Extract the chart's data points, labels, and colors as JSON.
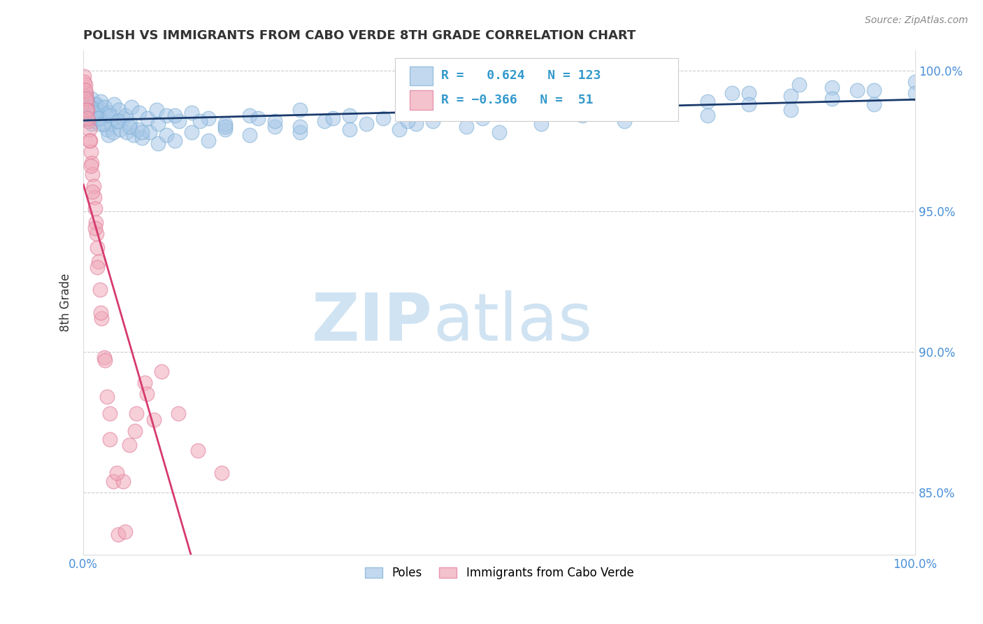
{
  "title": "POLISH VS IMMIGRANTS FROM CABO VERDE 8TH GRADE CORRELATION CHART",
  "source_text": "Source: ZipAtlas.com",
  "ylabel": "8th Grade",
  "watermark_zip": "ZIP",
  "watermark_atlas": "atlas",
  "blue_label": "Poles",
  "pink_label": "Immigrants from Cabo Verde",
  "blue_r": 0.624,
  "blue_n": 123,
  "pink_r": -0.366,
  "pink_n": 51,
  "blue_color": "#a8c8e8",
  "blue_edge_color": "#7aaed4",
  "pink_color": "#f0a8b8",
  "pink_edge_color": "#e07898",
  "blue_line_color": "#1a3a6b",
  "pink_line_color": "#d63a6e",
  "xmin": 0.0,
  "xmax": 1.0,
  "ymin": 0.828,
  "ymax": 1.007,
  "yticks": [
    0.85,
    0.9,
    0.95,
    1.0
  ],
  "ytick_labels": [
    "85.0%",
    "90.0%",
    "95.0%",
    "100.0%"
  ],
  "legend_r1": "R =  0.624   N = 123",
  "legend_r2": "R = −0.366   N =  51",
  "blue_seed_x": [
    0.002,
    0.003,
    0.004,
    0.005,
    0.006,
    0.007,
    0.008,
    0.009,
    0.01,
    0.011,
    0.012,
    0.013,
    0.014,
    0.015,
    0.016,
    0.017,
    0.018,
    0.019,
    0.02,
    0.022,
    0.025,
    0.028,
    0.03,
    0.033,
    0.036,
    0.04,
    0.044,
    0.048,
    0.052,
    0.056,
    0.06,
    0.065,
    0.07,
    0.08,
    0.09,
    0.1,
    0.11,
    0.13,
    0.15,
    0.17,
    0.2,
    0.23,
    0.26,
    0.29,
    0.32,
    0.36,
    0.4,
    0.44,
    0.48,
    0.52,
    0.56,
    0.6,
    0.65,
    0.7,
    0.75,
    0.8,
    0.85,
    0.9,
    0.95,
    1.0,
    0.003,
    0.005,
    0.007,
    0.01,
    0.013,
    0.017,
    0.021,
    0.026,
    0.031,
    0.037,
    0.043,
    0.05,
    0.058,
    0.067,
    0.077,
    0.088,
    0.1,
    0.115,
    0.13,
    0.15,
    0.17,
    0.2,
    0.23,
    0.26,
    0.3,
    0.34,
    0.38,
    0.42,
    0.46,
    0.5,
    0.55,
    0.6,
    0.65,
    0.7,
    0.75,
    0.8,
    0.85,
    0.9,
    0.95,
    1.0,
    0.004,
    0.008,
    0.012,
    0.018,
    0.024,
    0.032,
    0.042,
    0.055,
    0.07,
    0.09,
    0.11,
    0.14,
    0.17,
    0.21,
    0.26,
    0.32,
    0.39,
    0.46,
    0.54,
    0.62,
    0.7,
    0.78,
    0.86,
    0.93
  ],
  "blue_seed_y": [
    0.99,
    0.988,
    0.986,
    0.984,
    0.982,
    0.985,
    0.983,
    0.987,
    0.981,
    0.986,
    0.984,
    0.982,
    0.986,
    0.984,
    0.988,
    0.983,
    0.985,
    0.981,
    0.987,
    0.983,
    0.985,
    0.979,
    0.977,
    0.981,
    0.978,
    0.982,
    0.979,
    0.983,
    0.978,
    0.981,
    0.977,
    0.979,
    0.976,
    0.978,
    0.974,
    0.977,
    0.975,
    0.978,
    0.975,
    0.979,
    0.977,
    0.98,
    0.978,
    0.982,
    0.979,
    0.983,
    0.981,
    0.985,
    0.983,
    0.987,
    0.985,
    0.988,
    0.987,
    0.99,
    0.989,
    0.992,
    0.991,
    0.994,
    0.993,
    0.996,
    0.991,
    0.989,
    0.987,
    0.99,
    0.988,
    0.986,
    0.989,
    0.987,
    0.985,
    0.988,
    0.986,
    0.984,
    0.987,
    0.985,
    0.983,
    0.986,
    0.984,
    0.982,
    0.985,
    0.983,
    0.981,
    0.984,
    0.982,
    0.98,
    0.983,
    0.981,
    0.979,
    0.982,
    0.98,
    0.978,
    0.981,
    0.984,
    0.982,
    0.986,
    0.984,
    0.988,
    0.986,
    0.99,
    0.988,
    0.992,
    0.989,
    0.987,
    0.985,
    0.983,
    0.981,
    0.984,
    0.982,
    0.98,
    0.978,
    0.981,
    0.984,
    0.982,
    0.98,
    0.983,
    0.986,
    0.984,
    0.982,
    0.985,
    0.988,
    0.991,
    0.994,
    0.992,
    0.995,
    0.993
  ],
  "pink_seed_x": [
    0.001,
    0.002,
    0.003,
    0.004,
    0.005,
    0.006,
    0.007,
    0.008,
    0.009,
    0.01,
    0.011,
    0.012,
    0.013,
    0.014,
    0.015,
    0.016,
    0.017,
    0.018,
    0.02,
    0.022,
    0.025,
    0.028,
    0.032,
    0.036,
    0.042,
    0.048,
    0.055,
    0.064,
    0.074,
    0.085,
    0.001,
    0.002,
    0.003,
    0.004,
    0.005,
    0.007,
    0.009,
    0.011,
    0.014,
    0.017,
    0.021,
    0.026,
    0.032,
    0.04,
    0.05,
    0.062,
    0.076,
    0.094,
    0.114,
    0.138,
    0.166
  ],
  "pink_seed_y": [
    0.998,
    0.995,
    0.992,
    0.989,
    0.986,
    0.982,
    0.979,
    0.975,
    0.971,
    0.967,
    0.963,
    0.959,
    0.955,
    0.951,
    0.946,
    0.942,
    0.937,
    0.932,
    0.922,
    0.912,
    0.898,
    0.884,
    0.869,
    0.854,
    0.835,
    0.854,
    0.867,
    0.878,
    0.889,
    0.876,
    0.996,
    0.993,
    0.99,
    0.986,
    0.983,
    0.975,
    0.966,
    0.957,
    0.944,
    0.93,
    0.914,
    0.897,
    0.878,
    0.857,
    0.836,
    0.872,
    0.885,
    0.893,
    0.878,
    0.865,
    0.857
  ]
}
